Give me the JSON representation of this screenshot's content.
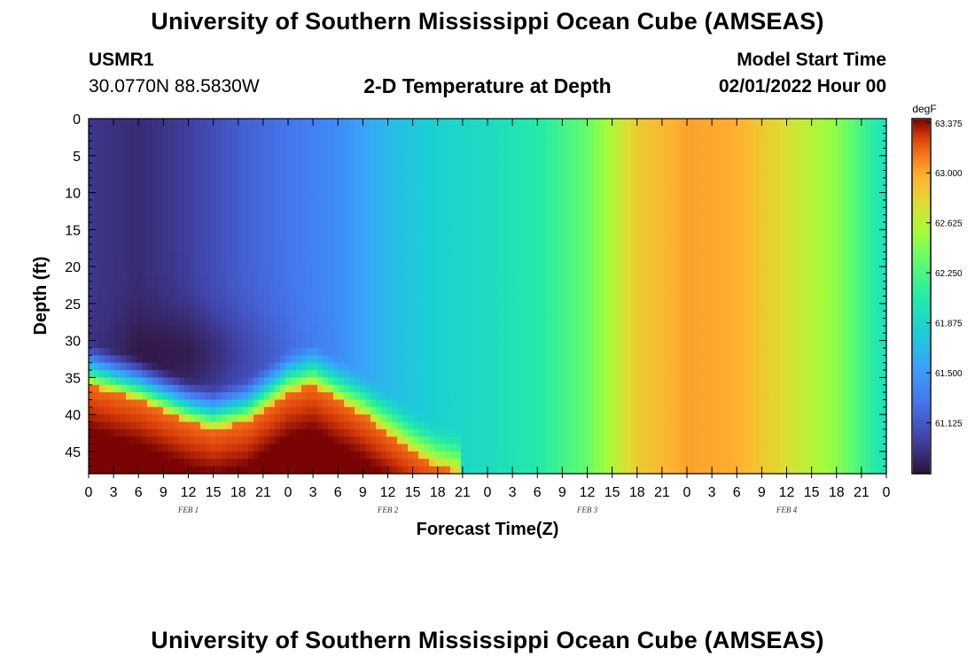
{
  "header": {
    "title": "University of Southern Mississippi Ocean Cube (AMSEAS)",
    "station_id": "USMR1",
    "coordinates": "30.0770N  88.5830W",
    "plot_title": "2-D Temperature at Depth",
    "model_start_label": "Model Start Time",
    "model_start_value": "02/01/2022 Hour 00"
  },
  "footer": {
    "title": "University of Southern Mississippi Ocean Cube (AMSEAS)"
  },
  "chart_data": {
    "type": "heatmap",
    "title": "2-D Temperature at Depth",
    "xlabel": "Forecast Time(Z)",
    "ylabel": "Depth (ft)",
    "x_ticks": [
      "0",
      "3",
      "6",
      "9",
      "12",
      "15",
      "18",
      "21",
      "0",
      "3",
      "6",
      "9",
      "12",
      "15",
      "18",
      "21",
      "0",
      "3",
      "6",
      "9",
      "12",
      "15",
      "18",
      "21",
      "0",
      "3",
      "6",
      "9",
      "12",
      "15",
      "18",
      "21",
      "0"
    ],
    "day_labels": [
      "FEB 1",
      "FEB 2",
      "FEB 3",
      "FEB 4"
    ],
    "x_range_hours": [
      0,
      96
    ],
    "y_ticks": [
      0,
      5,
      10,
      15,
      20,
      25,
      30,
      35,
      40,
      45
    ],
    "ylim_ft": [
      0,
      48
    ],
    "colorbar": {
      "unit": "degF",
      "ticks": [
        "63.375",
        "63.000",
        "62.625",
        "62.250",
        "61.875",
        "61.500",
        "61.125"
      ],
      "range": [
        60.75,
        63.4
      ]
    },
    "surface_temperature_by_hour": [
      {
        "hour": 0,
        "value": 60.95
      },
      {
        "hour": 6,
        "value": 60.88
      },
      {
        "hour": 12,
        "value": 60.98
      },
      {
        "hour": 18,
        "value": 61.15
      },
      {
        "hour": 24,
        "value": 61.28
      },
      {
        "hour": 30,
        "value": 61.42
      },
      {
        "hour": 36,
        "value": 61.68
      },
      {
        "hour": 42,
        "value": 61.84
      },
      {
        "hour": 48,
        "value": 61.92
      },
      {
        "hour": 54,
        "value": 62.05
      },
      {
        "hour": 60,
        "value": 62.35
      },
      {
        "hour": 66,
        "value": 62.85
      },
      {
        "hour": 72,
        "value": 63.02
      },
      {
        "hour": 78,
        "value": 62.98
      },
      {
        "hour": 84,
        "value": 62.75
      },
      {
        "hour": 90,
        "value": 62.48
      },
      {
        "hour": 96,
        "value": 61.95
      }
    ],
    "warm_bottom_layer_top_ft": [
      {
        "hour": 0,
        "value": 36
      },
      {
        "hour": 6,
        "value": 38
      },
      {
        "hour": 12,
        "value": 41
      },
      {
        "hour": 15,
        "value": 42
      },
      {
        "hour": 19,
        "value": 41
      },
      {
        "hour": 24,
        "value": 37
      },
      {
        "hour": 27,
        "value": 36
      },
      {
        "hour": 33,
        "value": 40
      },
      {
        "hour": 39,
        "value": 45
      },
      {
        "hour": 42,
        "value": 47
      },
      {
        "hour": 45,
        "value": 48
      }
    ],
    "warm_layer_temperature": 63.4
  }
}
